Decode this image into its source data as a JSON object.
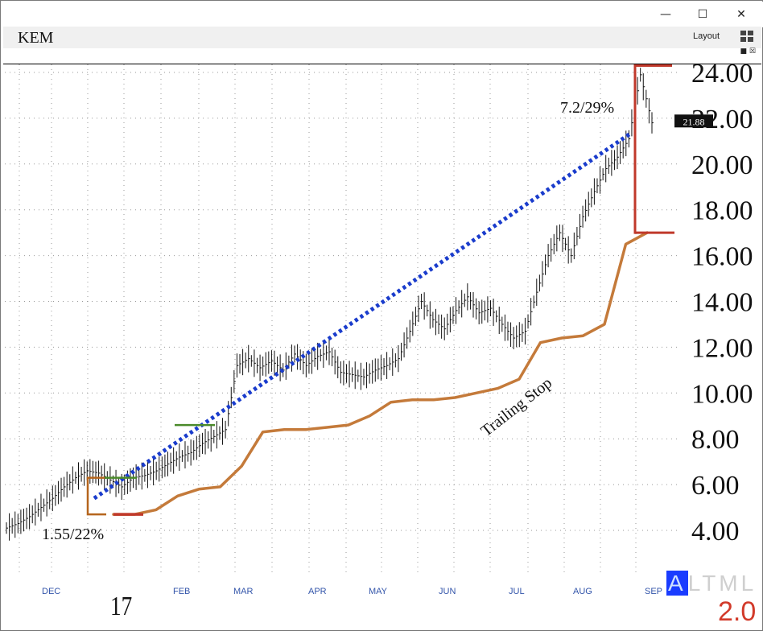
{
  "window": {
    "minimize_glyph": "—",
    "maximize_glyph": "☐",
    "close_glyph": "✕"
  },
  "header": {
    "symbol": "KEM",
    "layout_label": "Layout",
    "layout_icon": "layout-grid-icon"
  },
  "footer": {
    "year": "17",
    "altml_letters": [
      "A",
      "L",
      "T",
      "M",
      "L"
    ],
    "version": "2.0"
  },
  "colors": {
    "trend": "#1a3ccc",
    "stop": "#c47a3a",
    "box": "#c0392b",
    "box_low": "#b5651d",
    "flag": "#4a8a2a",
    "price_tag": "#111111"
  },
  "chart_data": {
    "type": "bar",
    "subtype": "ohlc-price-chart",
    "symbol": "KEM",
    "x_labels": [
      "DEC",
      "FEB",
      "MAR",
      "APR",
      "MAY",
      "JUN",
      "JUL",
      "AUG",
      "SEP"
    ],
    "y_ticks": [
      "4.00",
      "6.00",
      "8.00",
      "10.00",
      "12.00",
      "14.00",
      "16.00",
      "18.00",
      "20.00",
      "22.00",
      "24.00"
    ],
    "ylim": [
      3.0,
      24.5
    ],
    "log_scale": false,
    "grid": true,
    "last_price_tag": "21.88",
    "price_closes": [
      4.1,
      4.3,
      4.6,
      5.0,
      5.4,
      5.9,
      6.3,
      6.6,
      6.5,
      6.2,
      5.9,
      6.3,
      6.4,
      6.6,
      6.9,
      7.2,
      7.4,
      7.8,
      8.1,
      8.4,
      11.2,
      11.5,
      11.1,
      11.4,
      11.0,
      11.7,
      11.2,
      11.6,
      11.8,
      10.9,
      10.8,
      10.7,
      11.0,
      11.2,
      11.5,
      12.7,
      14.0,
      13.2,
      12.8,
      13.6,
      14.2,
      13.5,
      13.7,
      13.0,
      12.4,
      12.7,
      14.4,
      16.0,
      17.0,
      16.0,
      17.7,
      18.8,
      19.8,
      20.3,
      21.1,
      23.9,
      21.8
    ],
    "annotations": [
      {
        "text": "1.55/22%",
        "kind": "base-gain-label"
      },
      {
        "text": "7.2/29%",
        "kind": "target-gain-label"
      },
      {
        "text": "Trailing Stop",
        "kind": "stop-label"
      }
    ],
    "series": [
      {
        "name": "Trailing Stop",
        "style": "solid",
        "values": [
          4.7,
          4.7,
          4.9,
          5.5,
          5.8,
          5.9,
          6.8,
          8.3,
          8.4,
          8.4,
          8.5,
          8.6,
          9.0,
          9.6,
          9.7,
          9.7,
          9.8,
          10.0,
          10.2,
          10.6,
          12.2,
          12.4,
          12.5,
          13.0,
          16.5,
          17.0
        ]
      },
      {
        "name": "Trend",
        "style": "dotted",
        "from": 5.4,
        "to": 21.3
      }
    ],
    "boxes": [
      {
        "low": 4.7,
        "high": 6.3
      },
      {
        "low": 17.0,
        "high": 24.3
      }
    ],
    "flags": [
      6.3,
      8.6
    ]
  }
}
